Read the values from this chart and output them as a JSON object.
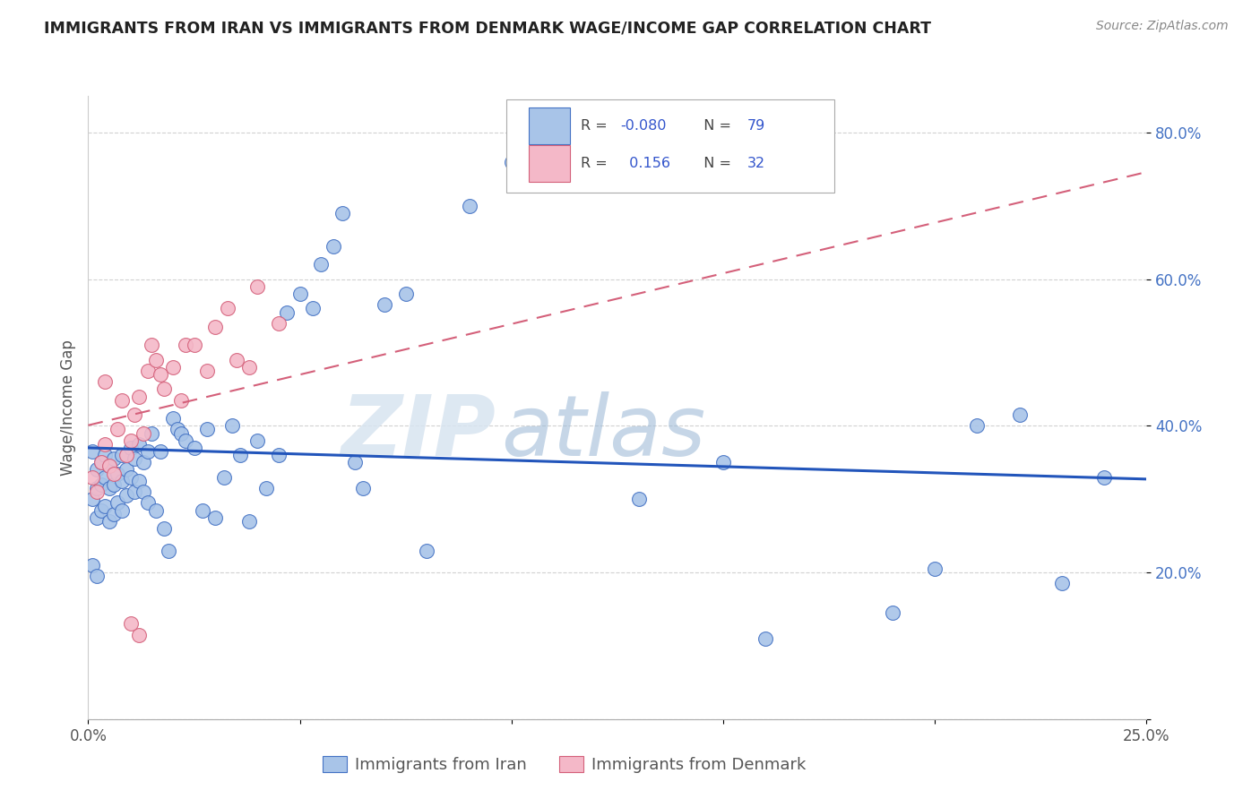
{
  "title": "IMMIGRANTS FROM IRAN VS IMMIGRANTS FROM DENMARK WAGE/INCOME GAP CORRELATION CHART",
  "source": "Source: ZipAtlas.com",
  "ylabel": "Wage/Income Gap",
  "legend_label1": "Immigrants from Iran",
  "legend_label2": "Immigrants from Denmark",
  "R1": -0.08,
  "N1": 79,
  "R2": 0.156,
  "N2": 32,
  "xmin": 0.0,
  "xmax": 0.25,
  "ymin": 0.0,
  "ymax": 0.85,
  "color_iran_face": "#a8c4e8",
  "color_iran_edge": "#4472C4",
  "color_denmark_face": "#f4b8c8",
  "color_denmark_edge": "#d4607a",
  "color_iran_line": "#2255BB",
  "color_denmark_line": "#d4607a",
  "watermark": "ZIPatlas",
  "legend_color_R": "#555555",
  "legend_color_val": "#3355cc",
  "iran_x": [
    0.001,
    0.001,
    0.002,
    0.002,
    0.002,
    0.003,
    0.003,
    0.003,
    0.004,
    0.004,
    0.004,
    0.005,
    0.005,
    0.005,
    0.006,
    0.006,
    0.006,
    0.007,
    0.007,
    0.008,
    0.008,
    0.008,
    0.009,
    0.009,
    0.01,
    0.01,
    0.011,
    0.011,
    0.012,
    0.012,
    0.013,
    0.013,
    0.014,
    0.014,
    0.015,
    0.016,
    0.017,
    0.018,
    0.019,
    0.02,
    0.021,
    0.022,
    0.023,
    0.025,
    0.027,
    0.028,
    0.03,
    0.032,
    0.034,
    0.036,
    0.038,
    0.04,
    0.042,
    0.045,
    0.047,
    0.05,
    0.053,
    0.055,
    0.058,
    0.06,
    0.063,
    0.065,
    0.07,
    0.075,
    0.08,
    0.09,
    0.1,
    0.11,
    0.13,
    0.15,
    0.16,
    0.19,
    0.2,
    0.21,
    0.22,
    0.23,
    0.24,
    0.001,
    0.002
  ],
  "iran_y": [
    0.365,
    0.3,
    0.34,
    0.315,
    0.275,
    0.35,
    0.32,
    0.285,
    0.36,
    0.33,
    0.29,
    0.345,
    0.315,
    0.27,
    0.355,
    0.32,
    0.28,
    0.335,
    0.295,
    0.36,
    0.325,
    0.285,
    0.34,
    0.305,
    0.37,
    0.33,
    0.355,
    0.31,
    0.375,
    0.325,
    0.35,
    0.31,
    0.365,
    0.295,
    0.39,
    0.285,
    0.365,
    0.26,
    0.23,
    0.41,
    0.395,
    0.39,
    0.38,
    0.37,
    0.285,
    0.395,
    0.275,
    0.33,
    0.4,
    0.36,
    0.27,
    0.38,
    0.315,
    0.36,
    0.555,
    0.58,
    0.56,
    0.62,
    0.645,
    0.69,
    0.35,
    0.315,
    0.565,
    0.58,
    0.23,
    0.7,
    0.76,
    0.75,
    0.3,
    0.35,
    0.11,
    0.145,
    0.205,
    0.4,
    0.415,
    0.185,
    0.33,
    0.21,
    0.195
  ],
  "denmark_x": [
    0.001,
    0.002,
    0.003,
    0.004,
    0.004,
    0.005,
    0.006,
    0.007,
    0.008,
    0.009,
    0.01,
    0.011,
    0.012,
    0.013,
    0.014,
    0.015,
    0.016,
    0.017,
    0.018,
    0.02,
    0.022,
    0.023,
    0.025,
    0.028,
    0.03,
    0.033,
    0.035,
    0.038,
    0.04,
    0.045,
    0.012,
    0.01
  ],
  "denmark_y": [
    0.33,
    0.31,
    0.35,
    0.375,
    0.46,
    0.345,
    0.335,
    0.395,
    0.435,
    0.36,
    0.38,
    0.415,
    0.44,
    0.39,
    0.475,
    0.51,
    0.49,
    0.47,
    0.45,
    0.48,
    0.435,
    0.51,
    0.51,
    0.475,
    0.535,
    0.56,
    0.49,
    0.48,
    0.59,
    0.54,
    0.115,
    0.13
  ]
}
